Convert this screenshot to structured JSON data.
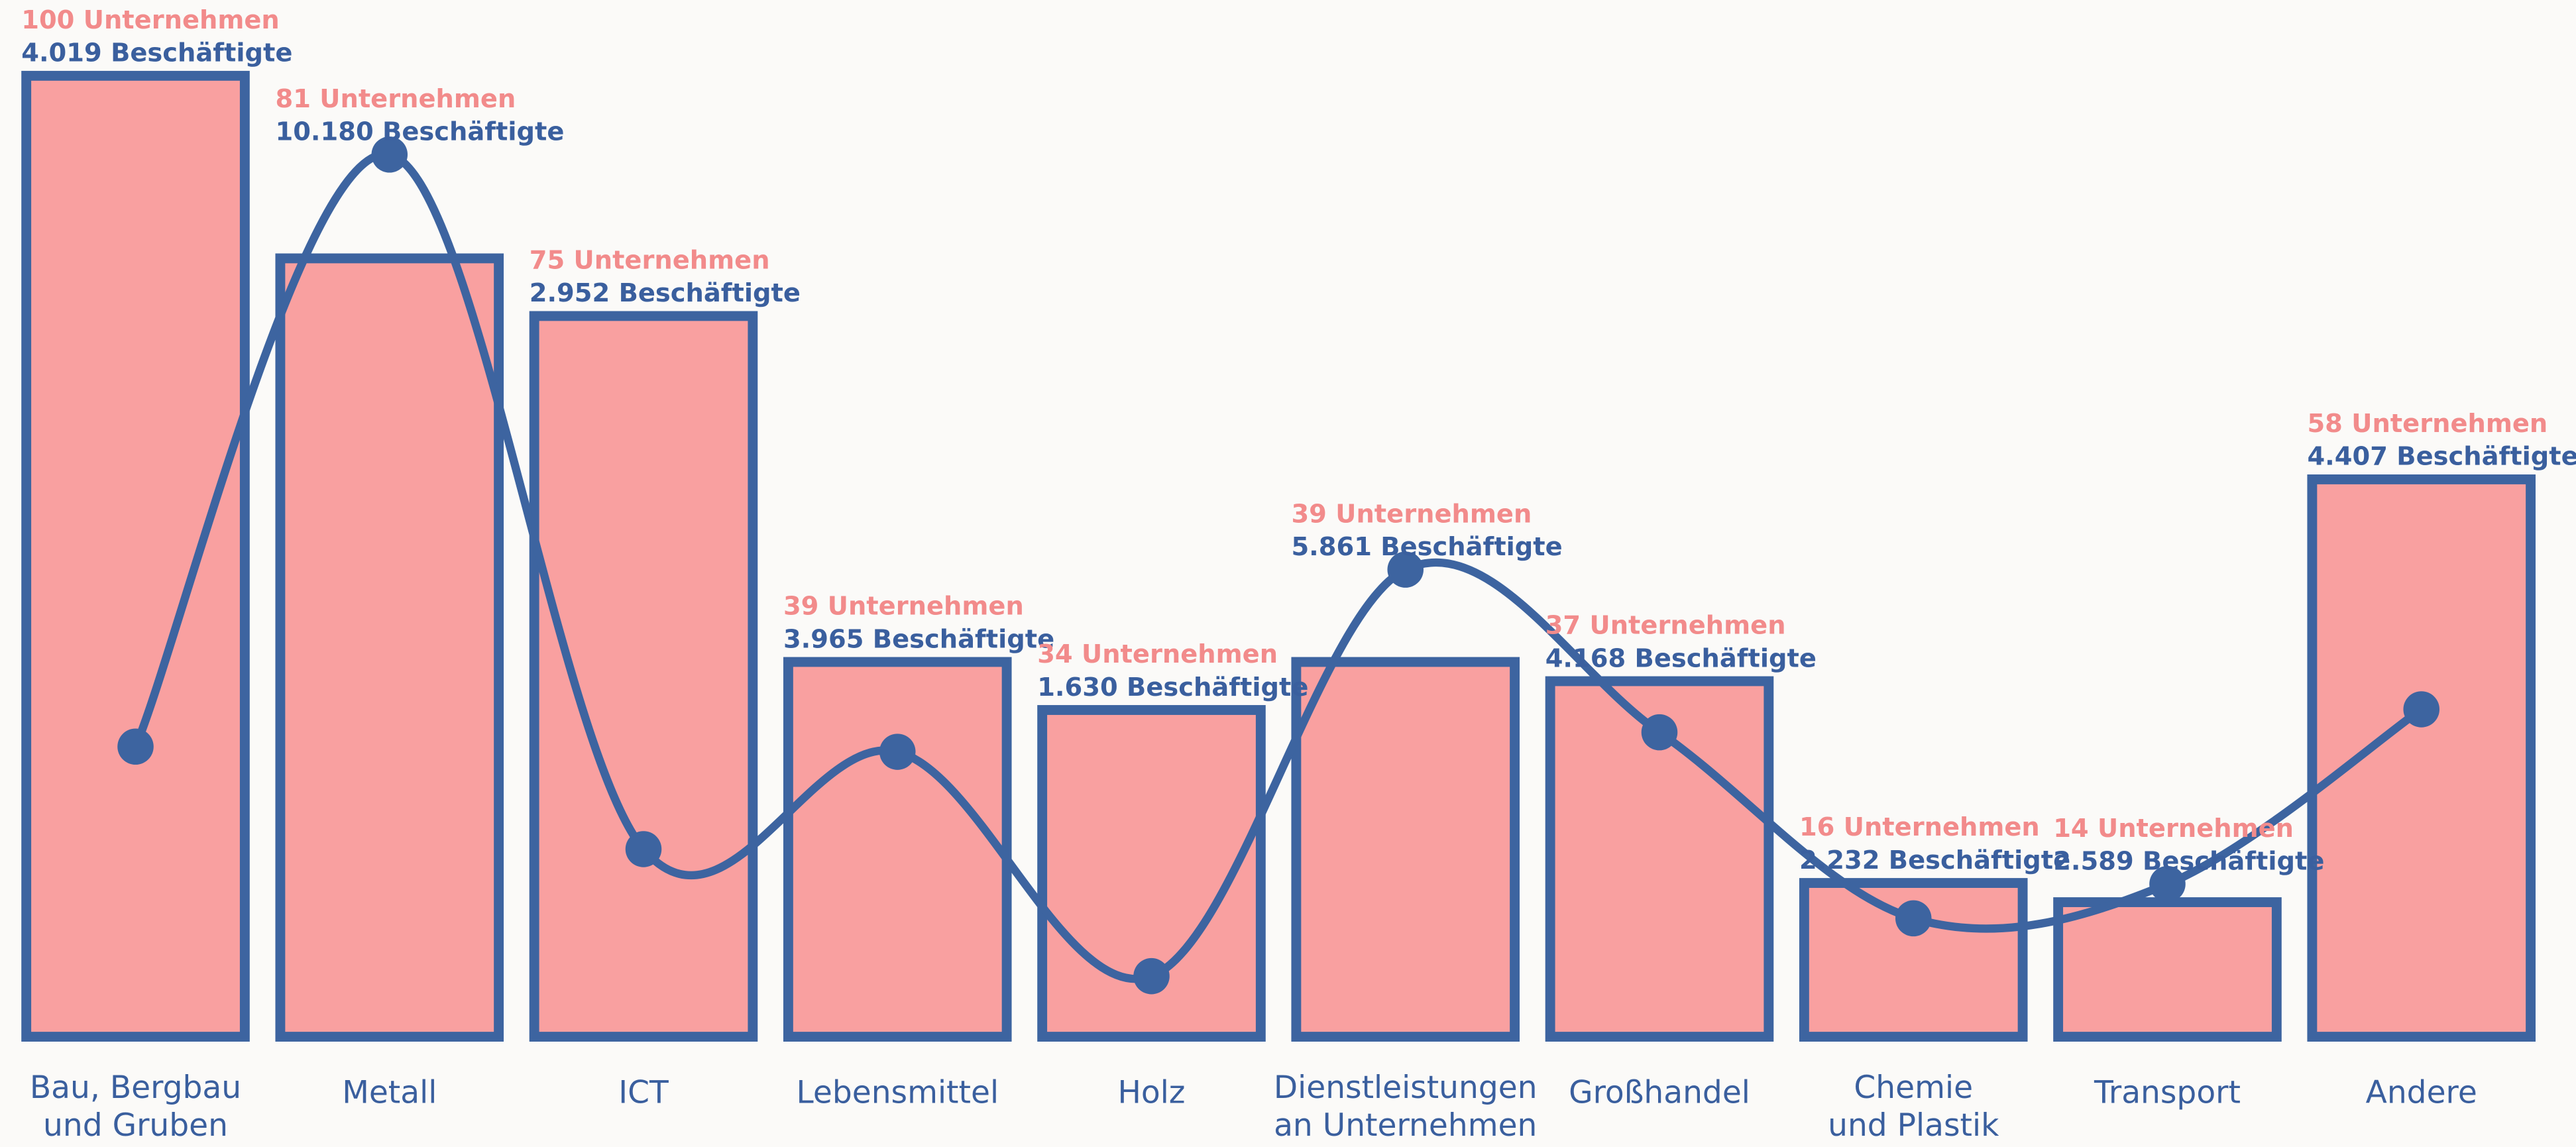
{
  "chart_data": {
    "type": "bar_line",
    "categories": [
      [
        "Bau, Bergbau",
        "und Gruben"
      ],
      [
        "Metall"
      ],
      [
        "ICT"
      ],
      [
        "Lebensmittel"
      ],
      [
        "Holz"
      ],
      [
        "Dienstleistungen",
        "an Unternehmen"
      ],
      [
        "Großhandel"
      ],
      [
        "Chemie",
        "und Plastik"
      ],
      [
        "Transport"
      ],
      [
        "Andere"
      ]
    ],
    "series": [
      {
        "name": "Unternehmen",
        "type": "bar",
        "color": "#f9a0a0",
        "edge_color": "#3d64a0",
        "label_color": "#f28b8b",
        "values": [
          100,
          81,
          75,
          39,
          34,
          39,
          37,
          16,
          14,
          58
        ],
        "value_labels": [
          "100 Unternehmen",
          "81 Unternehmen",
          "75 Unternehmen",
          "39 Unternehmen",
          "34 Unternehmen",
          "39 Unternehmen",
          "37 Unternehmen",
          "16 Unternehmen",
          "14 Unternehmen",
          "58 Unternehmen"
        ]
      },
      {
        "name": "Beschäftigte",
        "type": "line",
        "axis": "y2",
        "color": "#3d64a0",
        "label_color": "#3a5f9e",
        "values": [
          4019,
          10180,
          2952,
          3965,
          1630,
          5861,
          4168,
          2232,
          2589,
          4407
        ],
        "value_labels": [
          "4.019 Beschäftigte",
          "10.180 Beschäftigte",
          "2.952 Beschäftigte",
          "3.965 Beschäftigte",
          "1.630 Beschäftigte",
          "5.861 Beschäftigte",
          "4.168 Beschäftigte",
          "2.232 Beschäftigte",
          "2.589 Beschäftigte",
          "4.407 Beschäftigte"
        ]
      }
    ],
    "ylim": [
      0,
      100
    ],
    "y2lim": [
      1000,
      11000
    ]
  }
}
